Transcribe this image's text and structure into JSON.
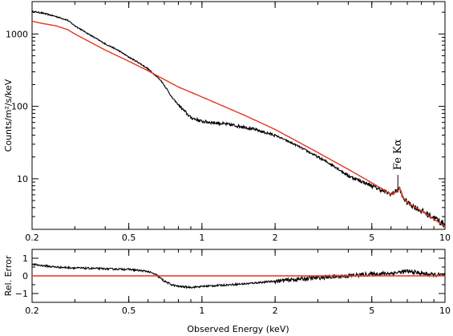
{
  "chart_data": [
    {
      "type": "line",
      "panel": "top",
      "ylabel": "Counts/m²/s/keV",
      "xscale": "log",
      "yscale": "log",
      "xlim": [
        0.2,
        10
      ],
      "ylim": [
        2,
        2800
      ],
      "x_ticks": [
        {
          "value": 0.2,
          "label": "0.2"
        },
        {
          "value": 0.5,
          "label": "0.5"
        },
        {
          "value": 1,
          "label": "1"
        },
        {
          "value": 2,
          "label": "2"
        },
        {
          "value": 5,
          "label": "5"
        },
        {
          "value": 10,
          "label": "10"
        }
      ],
      "y_ticks": [
        {
          "value": 10,
          "label": "10"
        },
        {
          "value": 100,
          "label": "100"
        },
        {
          "value": 1000,
          "label": "1000"
        }
      ],
      "series": [
        {
          "color": "#000000",
          "style": "data",
          "x": [
            0.2,
            0.22,
            0.25,
            0.28,
            0.3,
            0.35,
            0.4,
            0.45,
            0.5,
            0.55,
            0.6,
            0.65,
            0.68,
            0.7,
            0.72,
            0.75,
            0.8,
            0.85,
            0.9,
            1.0,
            1.2,
            1.5,
            2.0,
            2.5,
            3.0,
            3.5,
            4.0,
            5.0,
            6.0,
            6.3,
            6.5,
            6.7,
            7.0,
            8.0,
            9.0,
            10.0
          ],
          "y": [
            2050,
            1950,
            1750,
            1550,
            1300,
            950,
            730,
            600,
            480,
            400,
            330,
            260,
            225,
            195,
            170,
            135,
            105,
            85,
            70,
            62,
            58,
            52,
            40,
            28,
            20,
            15,
            11,
            8.0,
            6.1,
            6.8,
            7.5,
            5.5,
            4.7,
            3.6,
            2.9,
            2.3
          ]
        },
        {
          "color": "#e8341c",
          "style": "model",
          "x": [
            0.2,
            0.22,
            0.25,
            0.28,
            0.3,
            0.35,
            0.4,
            0.5,
            0.6,
            0.7,
            0.8,
            1.0,
            1.5,
            2.0,
            3.0,
            4.0,
            5.0,
            6.0,
            6.3,
            6.5,
            6.7,
            7.0,
            8.0,
            10.0
          ],
          "y": [
            1500,
            1400,
            1300,
            1150,
            1000,
            760,
            600,
            420,
            310,
            235,
            185,
            135,
            75,
            48,
            23,
            13.5,
            8.8,
            6.1,
            6.5,
            7.6,
            5.6,
            4.7,
            3.6,
            2.2
          ]
        }
      ],
      "annotations": [
        {
          "text": "Fe Kα",
          "x": 6.4,
          "y": 17
        }
      ]
    },
    {
      "type": "line",
      "panel": "bottom",
      "xlabel": "Observed Energy (keV)",
      "ylabel": "Rel. Error",
      "xscale": "log",
      "xlim": [
        0.2,
        10
      ],
      "ylim": [
        -1.5,
        1.5
      ],
      "x_ticks": [
        {
          "value": 0.2,
          "label": "0.2"
        },
        {
          "value": 0.5,
          "label": "0.5"
        },
        {
          "value": 1,
          "label": "1"
        },
        {
          "value": 2,
          "label": "2"
        },
        {
          "value": 5,
          "label": "5"
        },
        {
          "value": 10,
          "label": "10"
        }
      ],
      "y_ticks": [
        {
          "value": -1,
          "label": "−1"
        },
        {
          "value": 0,
          "label": "0"
        },
        {
          "value": 1,
          "label": "1"
        }
      ],
      "series": [
        {
          "color": "#000000",
          "style": "data",
          "x": [
            0.2,
            0.25,
            0.3,
            0.4,
            0.5,
            0.6,
            0.65,
            0.7,
            0.75,
            0.8,
            0.9,
            1.0,
            1.5,
            2.0,
            3.0,
            4.0,
            5.0,
            6.0,
            7.0,
            8.0,
            9.0,
            10.0
          ],
          "y": [
            0.65,
            0.5,
            0.45,
            0.4,
            0.37,
            0.25,
            0.05,
            -0.3,
            -0.5,
            -0.6,
            -0.65,
            -0.6,
            -0.45,
            -0.3,
            -0.1,
            0.0,
            0.1,
            0.15,
            0.25,
            0.15,
            0.05,
            0.05
          ]
        },
        {
          "color": "#e8341c",
          "style": "model",
          "x": [
            0.2,
            10.0
          ],
          "y": [
            0,
            0
          ]
        }
      ]
    }
  ]
}
